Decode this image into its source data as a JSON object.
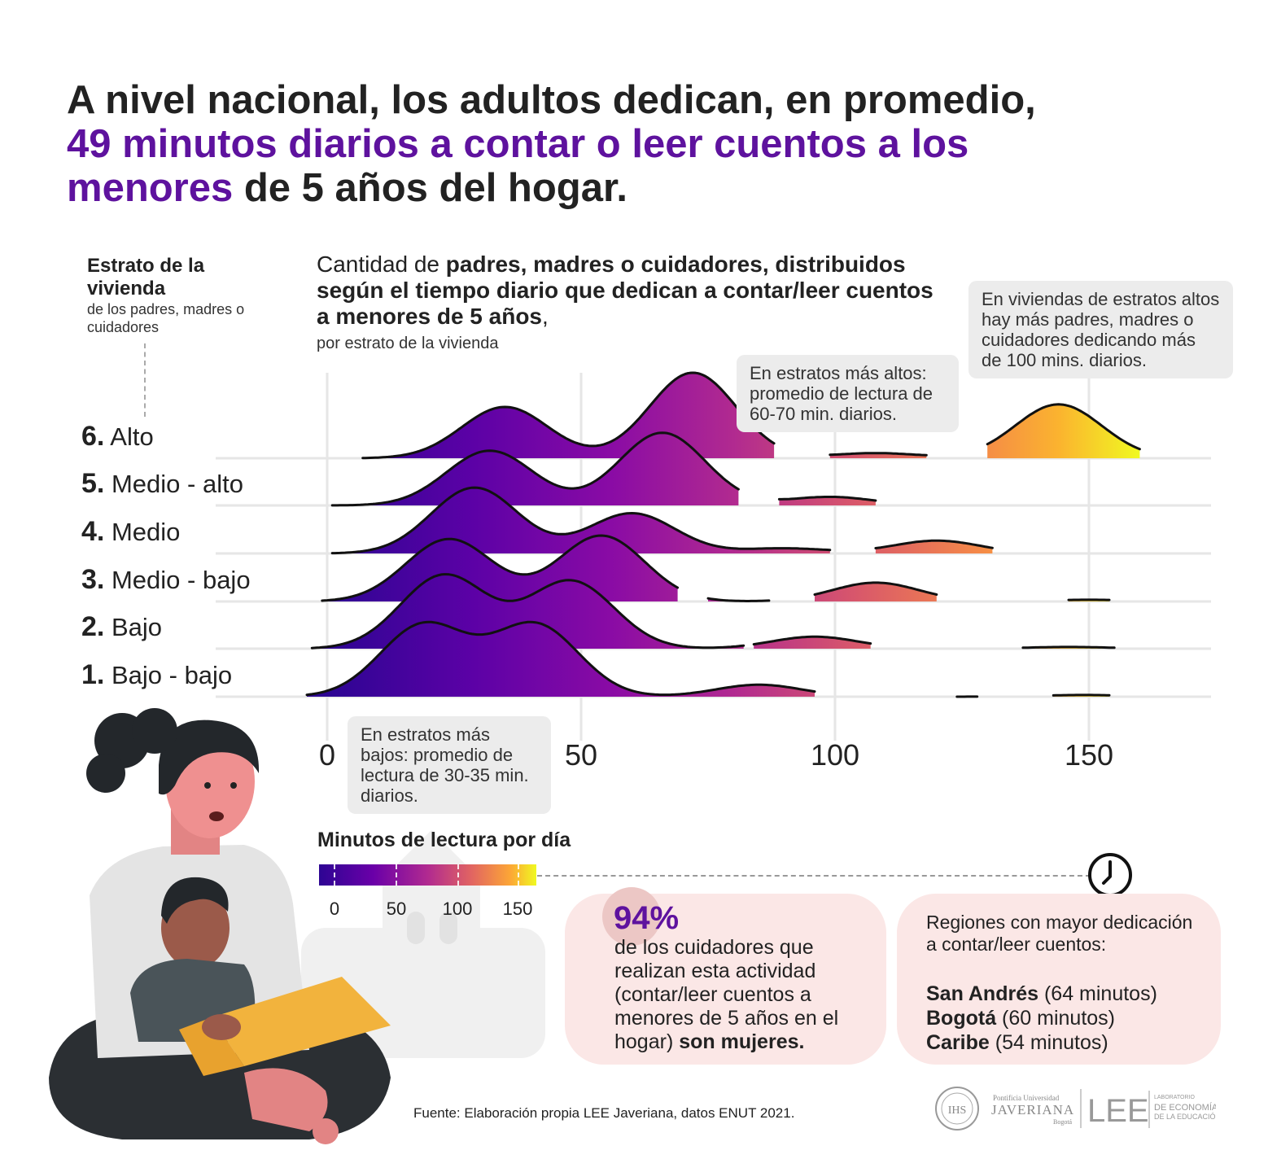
{
  "headline": {
    "part1": "A nivel nacional, los adultos dedican, en promedio, ",
    "highlight": "49 minutos diarios a contar o leer cuentos a los menores",
    "part2": " de 5 años del hogar."
  },
  "strato_header": {
    "title": "Estrato de la vivienda",
    "subtitle": "de los padres, madres o cuidadores"
  },
  "chart_subtitle": {
    "pre": "Cantidad de ",
    "bold": "padres, madres o cuidadores, distribuidos según el tiempo diario que dedican a contar/leer cuentos a menores de 5 años",
    "post": ",",
    "small": "por estrato de la vivienda"
  },
  "callouts": {
    "high_strata": "En estratos más altos: promedio de lectura de 60-70 min. diarios.",
    "high_more": "En viviendas de estratos altos hay más padres, madres o cuidadores dedicando más de 100 mins. diarios.",
    "low_strata": "En estratos más bajos: promedio de lectura de 30-35 min. diarios."
  },
  "chart_data": {
    "type": "ridgeline",
    "x_axis": {
      "range": [
        -5,
        175
      ],
      "ticks": [
        0,
        50,
        100,
        150
      ],
      "tick_labels": [
        "0",
        "50",
        "100",
        "150"
      ]
    },
    "grid": true,
    "color_scale": {
      "name": "plasma",
      "domain": [
        0,
        160
      ],
      "title": "Minutos de lectura por día",
      "ticks": [
        "0",
        "50",
        "100",
        "150"
      ]
    },
    "series": [
      {
        "number": "6.",
        "label": "Alto",
        "segments": [
          [
            7,
            88
          ],
          [
            57,
            86
          ],
          [
            99,
            118
          ],
          [
            130,
            160
          ]
        ],
        "peaks": [
          [
            35,
            0.6
          ],
          [
            72,
            1.0
          ],
          [
            108,
            0.06
          ],
          [
            144,
            0.63
          ]
        ]
      },
      {
        "number": "5.",
        "label": "Medio - alto",
        "segments": [
          [
            1,
            81
          ],
          [
            89,
            108
          ]
        ],
        "peaks": [
          [
            32,
            0.64
          ],
          [
            66,
            0.85
          ],
          [
            99,
            0.1
          ]
        ]
      },
      {
        "number": "4.",
        "label": "Medio",
        "segments": [
          [
            1,
            99
          ],
          [
            108,
            131
          ]
        ],
        "peaks": [
          [
            29,
            0.77
          ],
          [
            60,
            0.47
          ],
          [
            90,
            0.06
          ],
          [
            120,
            0.15
          ]
        ]
      },
      {
        "number": "3.",
        "label": "Medio - bajo",
        "segments": [
          [
            -1,
            69
          ],
          [
            75,
            87
          ],
          [
            96,
            120
          ],
          [
            146,
            154
          ]
        ],
        "peaks": [
          [
            24,
            0.73
          ],
          [
            54,
            0.77
          ],
          [
            108,
            0.22
          ],
          [
            150,
            0.02
          ]
        ]
      },
      {
        "number": "2.",
        "label": "Bajo",
        "segments": [
          [
            -3,
            82
          ],
          [
            84,
            107
          ],
          [
            137,
            155
          ]
        ],
        "peaks": [
          [
            23,
            0.86
          ],
          [
            48,
            0.79
          ],
          [
            96,
            0.14
          ],
          [
            146,
            0.02
          ]
        ]
      },
      {
        "number": "1.",
        "label": "Bajo - bajo",
        "segments": [
          [
            -4,
            96
          ],
          [
            124,
            128
          ],
          [
            143,
            154
          ]
        ],
        "peaks": [
          [
            19,
            0.84
          ],
          [
            41,
            0.84
          ],
          [
            85,
            0.14
          ],
          [
            149,
            0.02
          ]
        ]
      }
    ]
  },
  "stat_card": {
    "percent": "94%",
    "text_pre": "de los cuidadores que realizan esta actividad (contar/leer cuentos a menores de 5 años en el hogar) ",
    "text_bold": "son mujeres."
  },
  "regions_card": {
    "intro": "Regiones con mayor dedicación a contar/leer cuentos:",
    "items": [
      {
        "name": "San Andrés",
        "value": " (64 minutos)"
      },
      {
        "name": "Bogotá",
        "value": " (60 minutos)"
      },
      {
        "name": "Caribe",
        "value": " (54 minutos)"
      }
    ]
  },
  "source": "Fuente: Elaboración propia LEE Javeriana, datos ENUT 2021.",
  "logos": {
    "seal": "IHS",
    "university_top": "Pontificia Universidad",
    "university_name": "JAVERIANA",
    "university_city": "Bogotá",
    "lab": "LEE",
    "lab_top": "LABORATORIO",
    "lab_line1": "DE ECONOMÍA",
    "lab_line2": "DE LA EDUCACIÓN"
  },
  "icons": {
    "clock": "clock-icon",
    "illustration": "adult-reading-to-child-illustration"
  }
}
